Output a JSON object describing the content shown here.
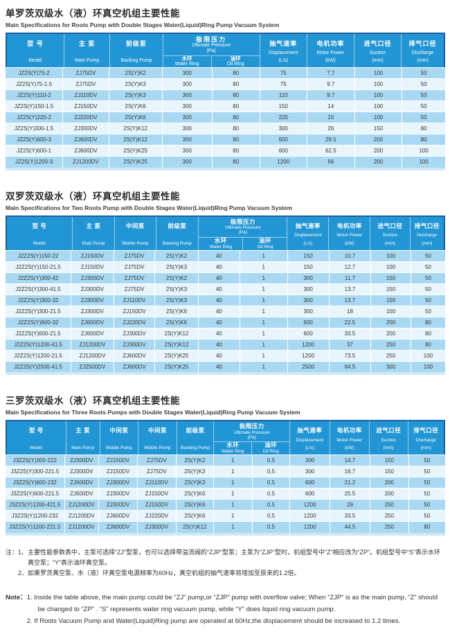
{
  "colors": {
    "header_blue": "#2296d4",
    "header_border": "#1b5fa4",
    "row_light": "#a9d9f2",
    "row_pale": "#e9f5fc",
    "cap_blue": "#cfe8f7",
    "text_dark": "#333333"
  },
  "headers": {
    "model": {
      "cn": "型 号",
      "en": "Model"
    },
    "main": {
      "cn": "主 泵",
      "en": "Main Pump"
    },
    "middle": {
      "cn": "中间泵",
      "en": "Middle Pump"
    },
    "backing": {
      "cn": "前级泵",
      "en": "Backing Pump"
    },
    "up": {
      "cn": "极限压力",
      "en": "Ultimate Pressure",
      "unit": "(Pa)"
    },
    "water": {
      "cn": "水环",
      "en": "Water Ring"
    },
    "oil": {
      "cn": "油环",
      "en": "Oil Ring"
    },
    "disp": {
      "cn": "抽气速率",
      "en": "Displacement",
      "unit": "(L/s)"
    },
    "motor": {
      "cn": "电机功率",
      "en": "Motor Power",
      "unit": "(kW)"
    },
    "suction": {
      "cn": "进气口径",
      "en": "Suction",
      "unit": "(mm)"
    },
    "discharge": {
      "cn": "排气口径",
      "en": "Discharge",
      "unit": "(mm)"
    }
  },
  "tables": [
    {
      "title_cn": "单罗茨双级水（液）环真空机组主要性能",
      "title_en": "Main Specifications for Roots Pump with Double Stages Water(Liquid)Ring Pump Vacuum System",
      "rows": [
        [
          "JZ2S(Y)75-2",
          "ZJ75DV",
          "2S(Y)K2",
          "300",
          "80",
          "75",
          "7.7",
          "100",
          "50"
        ],
        [
          "JZ2S(Y)75-1.5",
          "ZJ75DV",
          "2S(Y)K3",
          "300",
          "80",
          "75",
          "9.7",
          "100",
          "50"
        ],
        [
          "JZ2S(Y)110-2",
          "ZJ110DV",
          "2S(Y)K3",
          "300",
          "80",
          "110",
          "9.7",
          "100",
          "50"
        ],
        [
          "JZ2S(Y)150-1.5",
          "ZJ150DV",
          "2S(Y)K6",
          "300",
          "80",
          "150",
          "14",
          "100",
          "50"
        ],
        [
          "JZ2S(Y)220-2",
          "ZJ220DV",
          "2S(Y)K6",
          "300",
          "80",
          "220",
          "15",
          "100",
          "50"
        ],
        [
          "JZ2S(Y)300-1.5",
          "ZJ300DV",
          "2S(Y)K12",
          "300",
          "80",
          "300",
          "26",
          "150",
          "80"
        ],
        [
          "JZ2S(Y)600-3",
          "ZJ600DV",
          "2S(Y)K12",
          "300",
          "80",
          "600",
          "29.5",
          "200",
          "80"
        ],
        [
          "JZ2S(Y)600-1",
          "ZJ600DV",
          "2S(Y)K25",
          "300",
          "80",
          "600",
          "62.5",
          "200",
          "100"
        ],
        [
          "JZ2S(Y)1200-3",
          "ZJ1200DV",
          "2S(Y)K25",
          "300",
          "80",
          "1200",
          "66",
          "200",
          "100"
        ]
      ]
    },
    {
      "title_cn": "双罗茨双级水（液）环真空机组主要性能",
      "title_en": "Main Specifications for Two Roots Pump with Double Stages Water(Liquid)Ring Pump Vacuum System",
      "rows": [
        [
          "J2Z2S(Y)150-22",
          "ZJ150DV",
          "ZJ75DV",
          "2S(Y)K2",
          "40",
          "1",
          "150",
          "10.7",
          "100",
          "50"
        ],
        [
          "J2Z2S(Y)150-21.5",
          "ZJ150DV",
          "ZJ75DV",
          "2S(Y)K3",
          "40",
          "1",
          "150",
          "12.7",
          "100",
          "50"
        ],
        [
          "J2Z2S(Y)300-42",
          "ZJ300DV",
          "ZJ75DV",
          "2S(Y)K2",
          "40",
          "1",
          "300",
          "11.7",
          "150",
          "50"
        ],
        [
          "J2Z2S(Y)300-41.5",
          "ZJ300DV",
          "ZJ75DV",
          "2S(Y)K3",
          "40",
          "1",
          "300",
          "13.7",
          "150",
          "50"
        ],
        [
          "J2Z2S(Y)300-32",
          "ZJ300DV",
          "ZJ110DV",
          "2S(Y)K3",
          "40",
          "1",
          "300",
          "13.7",
          "150",
          "50"
        ],
        [
          "J2Z2S(Y)300-21.5",
          "ZJ300DV",
          "ZJ150DV",
          "2S(Y)K6",
          "40",
          "1",
          "300",
          "18",
          "150",
          "50"
        ],
        [
          "J2Z2S(Y)600-32",
          "ZJ600DV",
          "ZJ220DV",
          "2S(Y)K6",
          "40",
          "1",
          "600",
          "22.5",
          "200",
          "80"
        ],
        [
          "J2Z2S(Y)600-21.5",
          "ZJ600DV",
          "ZJ300DV",
          "2S(Y)K12",
          "40",
          "1",
          "600",
          "33.5",
          "200",
          "80"
        ],
        [
          "J2Z2S(Y)1200-41.5",
          "ZJ1200DV",
          "ZJ300DV",
          "2S(Y)K12",
          "40",
          "1",
          "1200",
          "37",
          "250",
          "80"
        ],
        [
          "J2Z2S(Y)1200-21.5",
          "ZJ1200DV",
          "ZJ600DV",
          "2S(Y)K25",
          "40",
          "1",
          "1200",
          "73.5",
          "250",
          "100"
        ],
        [
          "J2Z2S(Y)2500-41.5",
          "ZJ2500DV",
          "ZJ600DV",
          "2S(Y)K25",
          "40",
          "1",
          "2500",
          "84.5",
          "300",
          "100"
        ]
      ]
    },
    {
      "title_cn": "三罗茨双级水（液）环真空机组主要性能",
      "title_en": "Main Specifications for Three Roots Pumps with Double Stages Water(Liquid)Ring Pump Vacuum System",
      "rows": [
        [
          "J3Z2S(Y)300-222",
          "ZJ300DV",
          "ZJ150DV",
          "ZJ75DV",
          "2S(Y)K2",
          "1",
          "0.5",
          "300",
          "14.7",
          "150",
          "50"
        ],
        [
          "J3Z2S(Y)300-221.5",
          "ZJ300DV",
          "ZJ150DV",
          "ZJ75DV",
          "2S(Y)K3",
          "1",
          "0.5",
          "300",
          "16.7",
          "150",
          "50"
        ],
        [
          "J3Z2S(Y)600-232",
          "ZJ600DV",
          "ZJ300DV",
          "ZJ110DV",
          "2S(Y)K3",
          "1",
          "0.5",
          "600",
          "21.2",
          "200",
          "50"
        ],
        [
          "J3Z2S(Y)600-221.5",
          "ZJ600DV",
          "ZJ300DV",
          "ZJ150DV",
          "2S(Y)K6",
          "1",
          "0.5",
          "600",
          "25.5",
          "200",
          "50"
        ],
        [
          "J3Z2S(Y)1200-421.5",
          "ZJ1200DV",
          "ZJ300DV",
          "ZJ150DV",
          "2S(Y)K6",
          "1",
          "0.5",
          "1200",
          "29",
          "250",
          "50"
        ],
        [
          "J3Z2S(Y)1200-232",
          "ZJ1200DV",
          "ZJ600DV",
          "ZJ220DV",
          "2S(Y)K6",
          "1",
          "0.5",
          "1200",
          "33.5",
          "250",
          "50"
        ],
        [
          "J3Z2S(Y)1200-221.5",
          "ZJ1200DV",
          "ZJ600DV",
          "ZJ300DV",
          "2S(Y)K12",
          "1",
          "0.5",
          "1200",
          "44.5",
          "250",
          "80"
        ]
      ]
    }
  ],
  "notes_cn": {
    "label": "注：",
    "items": [
      "1、主要性能参数表中，主泵可选择“ZJ”型泵，也可以选择带溢流阀的“ZJP”型泵；主泵为“ZJP”型时，机组型号中“Z”相应改为“ZP”。机组型号中“S”表示水环真空泵；“Y”表示油环真空泵。",
      "2、如果罗茨真空泵、水（液）环真空泵电源频率为60Hz，真空机组的抽气速率将增加至原来的1.2倍。"
    ]
  },
  "notes_en": {
    "label": "Note：",
    "items": [
      "1.  Inside the table above, the main pump could be “ZJ” pump,or “ZJP” pump with overflow valve; When “ZJP” is as the main pump, “Z” should be changed to “ZP” . “S” represents water ring vacuum pump, while “Y” does liquid ring vacuum pump.",
      "2.  If Roots Vacuum Pump and Water(Liquid)Ring pump are operated at 60Hz,the displacement should be increased to 1.2 times."
    ]
  }
}
